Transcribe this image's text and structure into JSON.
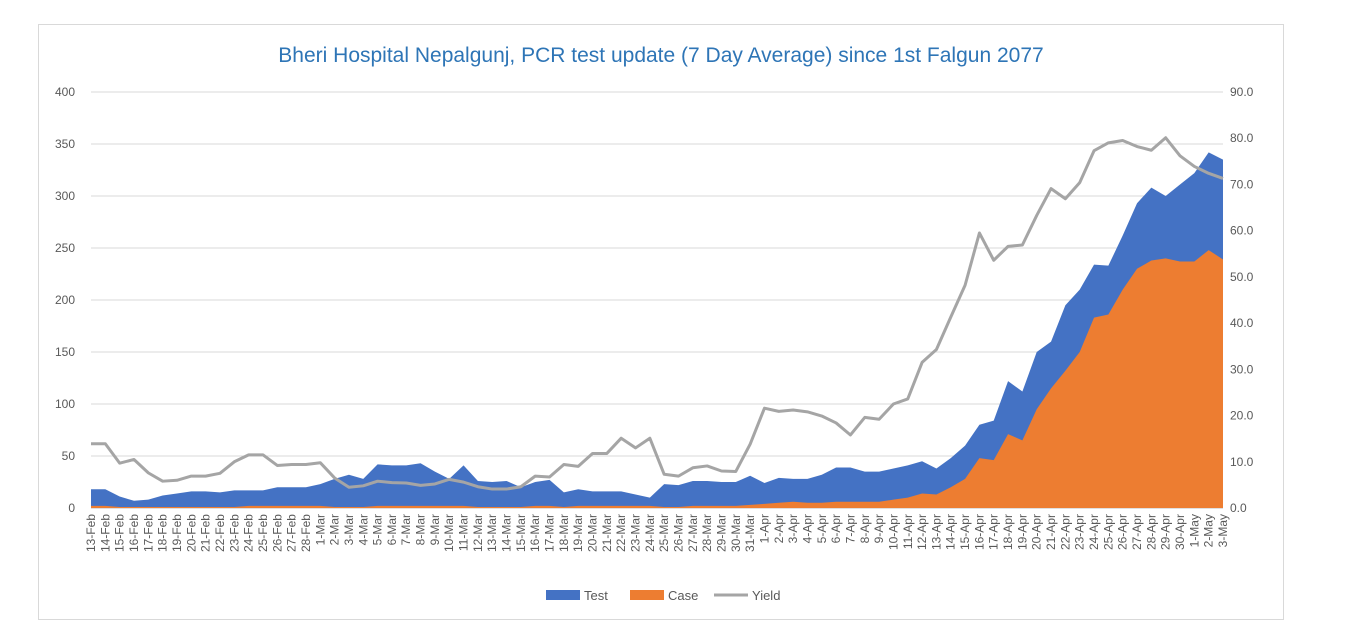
{
  "chart_data": {
    "type": "area",
    "title": "Bheri Hospital Nepalgunj, PCR test update (7 Day Average) since 1st Falgun 2077",
    "categories": [
      "13-Feb",
      "14-Feb",
      "15-Feb",
      "16-Feb",
      "17-Feb",
      "18-Feb",
      "19-Feb",
      "20-Feb",
      "21-Feb",
      "22-Feb",
      "23-Feb",
      "24-Feb",
      "25-Feb",
      "26-Feb",
      "27-Feb",
      "28-Feb",
      "1-Mar",
      "2-Mar",
      "3-Mar",
      "4-Mar",
      "5-Mar",
      "6-Mar",
      "7-Mar",
      "8-Mar",
      "9-Mar",
      "10-Mar",
      "11-Mar",
      "12-Mar",
      "13-Mar",
      "14-Mar",
      "15-Mar",
      "16-Mar",
      "17-Mar",
      "18-Mar",
      "19-Mar",
      "20-Mar",
      "21-Mar",
      "22-Mar",
      "23-Mar",
      "24-Mar",
      "25-Mar",
      "26-Mar",
      "27-Mar",
      "28-Mar",
      "29-Mar",
      "30-Mar",
      "31-Mar",
      "1-Apr",
      "2-Apr",
      "3-Apr",
      "4-Apr",
      "5-Apr",
      "6-Apr",
      "7-Apr",
      "8-Apr",
      "9-Apr",
      "10-Apr",
      "11-Apr",
      "12-Apr",
      "13-Apr",
      "14-Apr",
      "15-Apr",
      "16-Apr",
      "17-Apr",
      "18-Apr",
      "19-Apr",
      "20-Apr",
      "21-Apr",
      "22-Apr",
      "23-Apr",
      "24-Apr",
      "25-Apr",
      "26-Apr",
      "27-Apr",
      "28-Apr",
      "29-Apr",
      "30-Apr",
      "1-May",
      "2-May",
      "3-May"
    ],
    "series": [
      {
        "name": "Test",
        "kind": "area",
        "axis": "left",
        "color": "#4472c4",
        "values": [
          18,
          18,
          11,
          7,
          8,
          12,
          14,
          16,
          16,
          15,
          17,
          17,
          17,
          20,
          20,
          20,
          23,
          28,
          32,
          28,
          42,
          41,
          41,
          43,
          35,
          28,
          41,
          26,
          25,
          26,
          20,
          25,
          27,
          15,
          18,
          16,
          16,
          16,
          13,
          10,
          23,
          22,
          26,
          26,
          25,
          25,
          31,
          24,
          29,
          28,
          28,
          32,
          39,
          39,
          35,
          35,
          38,
          41,
          45,
          38,
          48,
          60,
          80,
          84,
          122,
          112,
          150,
          160,
          195,
          210,
          234,
          233,
          262,
          293,
          308,
          300,
          311,
          322,
          342,
          335
        ]
      },
      {
        "name": "Case",
        "kind": "area",
        "axis": "left",
        "color": "#ed7d31",
        "values": [
          2,
          2,
          1,
          1,
          1,
          1,
          1,
          1,
          1,
          1,
          1,
          2,
          2,
          2,
          2,
          2,
          2,
          1,
          1,
          1,
          2,
          2,
          2,
          2,
          2,
          2,
          2,
          1,
          1,
          1,
          1,
          2,
          2,
          1,
          2,
          2,
          2,
          2,
          2,
          2,
          1,
          1,
          2,
          2,
          2,
          2,
          3,
          4,
          5,
          6,
          5,
          5,
          6,
          6,
          6,
          6,
          8,
          10,
          14,
          13,
          20,
          28,
          48,
          46,
          71,
          65,
          95,
          115,
          132,
          150,
          183,
          186,
          210,
          230,
          238,
          240,
          237,
          237,
          248,
          239
        ]
      },
      {
        "name": "Yield",
        "kind": "line",
        "axis": "right",
        "color": "#a5a5a5",
        "values": [
          13.9,
          13.9,
          9.7,
          10.5,
          7.6,
          5.8,
          6.0,
          6.9,
          6.9,
          7.5,
          10.0,
          11.5,
          11.5,
          9.2,
          9.4,
          9.4,
          9.8,
          6.5,
          4.5,
          4.8,
          5.8,
          5.5,
          5.4,
          4.9,
          5.2,
          6.2,
          5.6,
          4.6,
          4.1,
          4.1,
          4.6,
          6.9,
          6.7,
          9.4,
          9.0,
          11.8,
          11.8,
          15.1,
          13.0,
          15.1,
          7.3,
          6.9,
          8.7,
          9.1,
          8.0,
          7.9,
          13.8,
          21.6,
          20.9,
          21.2,
          20.8,
          19.9,
          18.4,
          15.8,
          19.6,
          19.2,
          22.5,
          23.6,
          31.5,
          34.3,
          41.3,
          48.2,
          59.5,
          53.6,
          56.6,
          56.9,
          63.3,
          69.1,
          66.9,
          70.4,
          77.3,
          79.0,
          79.5,
          78.2,
          77.4,
          80.1,
          76.2,
          73.9,
          72.4,
          71.3
        ]
      }
    ],
    "y_left": {
      "min": 0,
      "max": 400,
      "ticks": [
        "0",
        "50",
        "100",
        "150",
        "200",
        "250",
        "300",
        "350",
        "400"
      ]
    },
    "y_right": {
      "min": 0,
      "max": 90,
      "ticks": [
        "0.0",
        "10.0",
        "20.0",
        "30.0",
        "40.0",
        "50.0",
        "60.0",
        "70.0",
        "80.0",
        "90.0"
      ]
    },
    "grid": true,
    "legend_position": "bottom"
  }
}
